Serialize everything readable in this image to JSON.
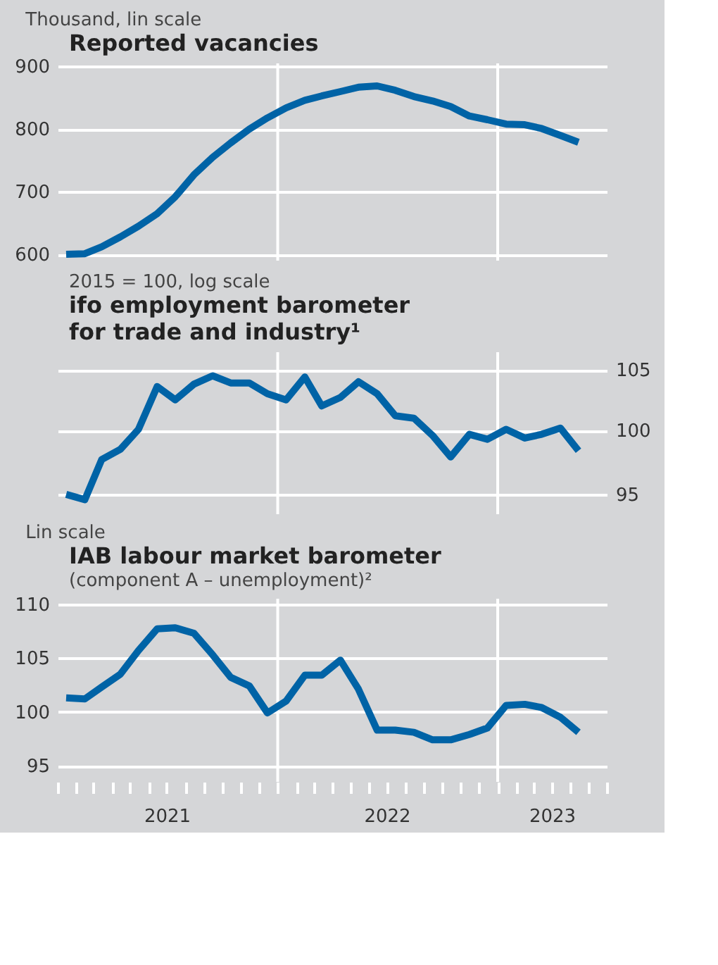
{
  "chart_data": [
    {
      "type": "line",
      "ylabel": "Thousand, lin scale",
      "title": "Reported vacancies",
      "x": [
        "2021-01-15",
        "2021-02-15",
        "2021-03-15",
        "2021-04-15",
        "2021-05-15",
        "2021-06-15",
        "2021-07-15",
        "2021-08-15",
        "2021-09-15",
        "2021-10-15",
        "2021-11-15",
        "2021-12-15",
        "2022-01-15",
        "2022-02-15",
        "2022-03-15",
        "2022-04-15",
        "2022-05-15",
        "2022-06-15",
        "2022-07-15",
        "2022-08-15",
        "2022-09-15",
        "2022-10-15",
        "2022-11-15",
        "2022-12-15",
        "2023-01-15",
        "2023-02-15",
        "2023-03-15",
        "2023-04-15",
        "2023-05-15"
      ],
      "series": [
        {
          "color": "#0063a6",
          "values": [
            600,
            601,
            612,
            628,
            645,
            665,
            692,
            727,
            755,
            778,
            800,
            818,
            834,
            846,
            853,
            860,
            867,
            869,
            862,
            852,
            845,
            836,
            821,
            815,
            808,
            807,
            801,
            790,
            779
          ]
        }
      ],
      "xlim": [
        "2021-01-01",
        "2023-07-01"
      ],
      "ylim": [
        590,
        905
      ],
      "yticks": [
        600,
        700,
        800,
        900
      ],
      "ref_lines": [
        {
          "axis": "x",
          "value": "2022-01-01",
          "color": "#ffffff"
        },
        {
          "axis": "x",
          "value": "2023-01-01",
          "color": "#ffffff"
        }
      ],
      "grid": "y",
      "tick_labels": "y"
    },
    {
      "type": "line",
      "ylabel": "2015 = 100, log scale",
      "title": "ifo employment barometer for trade and industry¹",
      "x": [
        "2021-01-15",
        "2021-02-15",
        "2021-03-15",
        "2021-04-15",
        "2021-05-15",
        "2021-06-15",
        "2021-07-15",
        "2021-08-15",
        "2021-09-15",
        "2021-10-15",
        "2021-11-15",
        "2021-12-15",
        "2022-01-15",
        "2022-02-15",
        "2022-03-15",
        "2022-04-15",
        "2022-05-15",
        "2022-06-15",
        "2022-07-15",
        "2022-08-15",
        "2022-09-15",
        "2022-10-15",
        "2022-11-15",
        "2022-12-15",
        "2023-01-15",
        "2023-02-15",
        "2023-03-15",
        "2023-04-15",
        "2023-05-15"
      ],
      "series": [
        {
          "color": "#0063a6",
          "values": [
            95.0,
            94.6,
            97.7,
            98.5,
            100.1,
            103.6,
            102.5,
            103.8,
            104.5,
            103.9,
            103.9,
            103.0,
            102.5,
            104.4,
            102.0,
            102.7,
            104.0,
            103.0,
            101.2,
            101.0,
            99.6,
            97.9,
            99.7,
            99.3,
            100.1,
            99.4,
            99.7,
            100.2,
            98.4
          ]
        }
      ],
      "xlim": [
        "2021-01-01",
        "2023-07-01"
      ],
      "ylim": [
        93.5,
        106.5
      ],
      "yticks": [
        95,
        100,
        105
      ],
      "log": true,
      "ref_lines": [
        {
          "axis": "x",
          "value": "2022-01-01",
          "color": "#ffffff"
        },
        {
          "axis": "x",
          "value": "2023-01-01",
          "color": "#ffffff"
        }
      ],
      "grid": "y",
      "tick_labels": "y"
    },
    {
      "type": "line",
      "ylabel": "Lin scale",
      "title": "IAB labour market barometer",
      "subtitle": "(component A – unemployment)²",
      "x": [
        "2021-01-15",
        "2021-02-15",
        "2021-03-15",
        "2021-04-15",
        "2021-05-15",
        "2021-06-15",
        "2021-07-15",
        "2021-08-15",
        "2021-09-15",
        "2021-10-15",
        "2021-11-15",
        "2021-12-15",
        "2022-01-15",
        "2022-02-15",
        "2022-03-15",
        "2022-04-15",
        "2022-05-15",
        "2022-06-15",
        "2022-07-15",
        "2022-08-15",
        "2022-09-15",
        "2022-10-15",
        "2022-11-15",
        "2022-12-15",
        "2023-01-15",
        "2023-02-15",
        "2023-03-15",
        "2023-04-15",
        "2023-05-15"
      ],
      "series": [
        {
          "color": "#0063a6",
          "values": [
            101.3,
            101.2,
            102.3,
            103.5,
            105.7,
            107.7,
            107.8,
            107.3,
            105.3,
            103.2,
            102.4,
            99.9,
            101.0,
            103.4,
            103.4,
            104.8,
            102.1,
            98.3,
            98.3,
            98.1,
            97.4,
            97.4,
            97.9,
            98.5,
            100.6,
            100.7,
            100.4,
            99.5,
            98.1
          ]
        }
      ],
      "xlim": [
        "2021-01-01",
        "2023-07-01"
      ],
      "ylim": [
        93.5,
        110.5
      ],
      "yticks": [
        95,
        100,
        105,
        110
      ],
      "xticks": [
        {
          "value": "2021-01-01",
          "label": null
        },
        {
          "value": "2021-02-01",
          "label": null
        },
        {
          "value": "2021-03-01",
          "label": null
        },
        {
          "value": "2021-04-01",
          "label": null
        },
        {
          "value": "2021-05-01",
          "label": null
        },
        {
          "value": "2021-06-01",
          "label": null
        },
        {
          "value": "2021-07-01",
          "label": "2021"
        },
        {
          "value": "2021-08-01",
          "label": null
        },
        {
          "value": "2021-09-01",
          "label": null
        },
        {
          "value": "2021-10-01",
          "label": null
        },
        {
          "value": "2021-11-01",
          "label": null
        },
        {
          "value": "2021-12-01",
          "label": null
        },
        {
          "value": "2022-01-01",
          "label": null
        },
        {
          "value": "2022-02-01",
          "label": null
        },
        {
          "value": "2022-03-01",
          "label": null
        },
        {
          "value": "2022-04-01",
          "label": null
        },
        {
          "value": "2022-05-01",
          "label": null
        },
        {
          "value": "2022-06-01",
          "label": null
        },
        {
          "value": "2022-07-01",
          "label": "2022"
        },
        {
          "value": "2022-08-01",
          "label": null
        },
        {
          "value": "2022-09-01",
          "label": null
        },
        {
          "value": "2022-10-01",
          "label": null
        },
        {
          "value": "2022-11-01",
          "label": null
        },
        {
          "value": "2022-12-01",
          "label": null
        },
        {
          "value": "2023-01-01",
          "label": null
        },
        {
          "value": "2023-02-01",
          "label": null
        },
        {
          "value": "2023-03-01",
          "label": null
        },
        {
          "value": "2023-04-01",
          "label": "2023"
        },
        {
          "value": "2023-05-01",
          "label": null
        },
        {
          "value": "2023-06-01",
          "label": null
        },
        {
          "value": "2023-07-01",
          "label": null
        }
      ],
      "ref_lines": [
        {
          "axis": "x",
          "value": "2022-01-01",
          "color": "#ffffff"
        },
        {
          "axis": "x",
          "value": "2023-01-01",
          "color": "#ffffff"
        }
      ],
      "grid": "y"
    }
  ]
}
